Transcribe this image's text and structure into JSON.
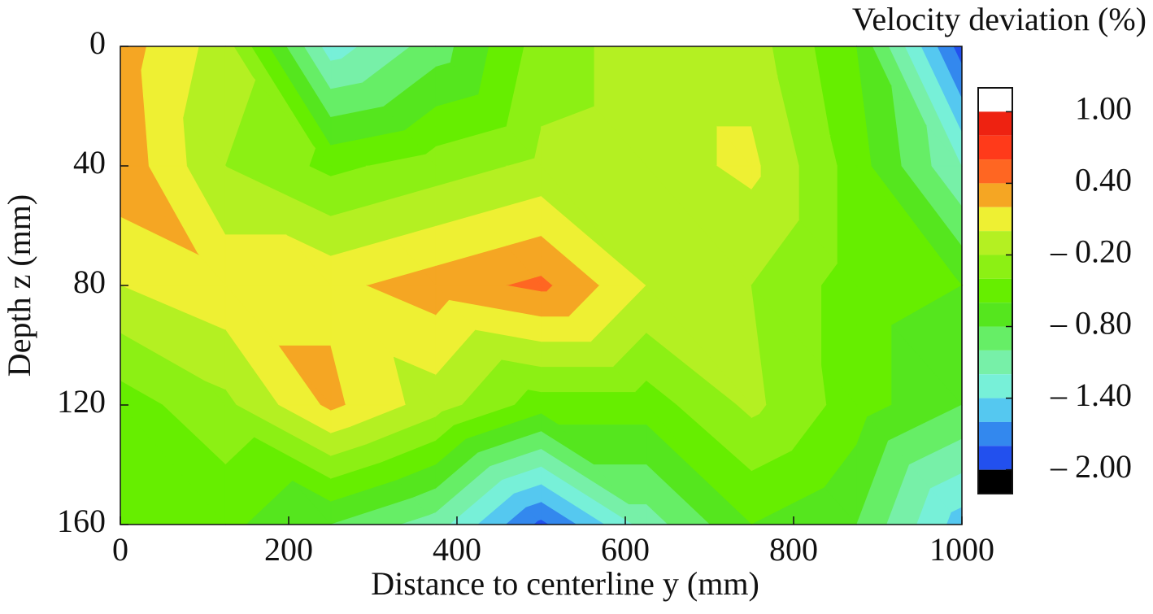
{
  "chart_data": {
    "type": "contour",
    "title": "Velocity deviation (%)",
    "x_label": "Distance to centerline y (mm)",
    "y_label": "Depth z (mm)",
    "x": [
      0,
      125,
      250,
      375,
      500,
      625,
      750,
      875,
      1000
    ],
    "y": [
      0,
      40,
      80,
      120,
      160
    ],
    "z": [
      [
        0.3,
        -0.1,
        -1.3,
        -0.9,
        -0.3,
        -0.1,
        -0.1,
        -0.6,
        -1.9
      ],
      [
        0.35,
        -0.2,
        -0.45,
        -0.3,
        -0.15,
        -0.1,
        0.05,
        -0.5,
        -1.2
      ],
      [
        0.0,
        0.15,
        0.15,
        0.3,
        0.45,
        0.0,
        -0.2,
        -0.5,
        -0.6
      ],
      [
        -0.5,
        -0.25,
        0.25,
        -0.1,
        -0.5,
        -0.5,
        -0.15,
        -0.5,
        -0.8
      ],
      [
        -0.6,
        -0.55,
        -0.8,
        -1.1,
        -1.85,
        -1.1,
        -0.6,
        -0.8,
        -1.5
      ]
    ],
    "xlim": [
      0,
      1000
    ],
    "ylim": [
      160,
      0
    ],
    "xticks": [
      0,
      200,
      400,
      600,
      800,
      1000
    ],
    "yticks": [
      0,
      40,
      80,
      120,
      160
    ],
    "levels": [
      1.2,
      1.0,
      0.8,
      0.6,
      0.4,
      0.2,
      0.0,
      -0.2,
      -0.4,
      -0.6,
      -0.8,
      -1.0,
      -1.2,
      -1.4,
      -1.6,
      -1.8,
      -2.0,
      -2.2
    ],
    "colors": [
      "#ffffff",
      "#ee2211",
      "#ff3a1a",
      "#ff6622",
      "#f5a623",
      "#eef033",
      "#b4f022",
      "#8cf014",
      "#66ee00",
      "#55e61e",
      "#66ee66",
      "#77f0a8",
      "#77f0d8",
      "#55c8f0",
      "#3388ee",
      "#2250ee",
      "#000000"
    ],
    "colorbar_ticks": [
      {
        "value": 1.0,
        "label": "1.00"
      },
      {
        "value": 0.4,
        "label": "0.40"
      },
      {
        "value": -0.2,
        "label": "– 0.20"
      },
      {
        "value": -0.8,
        "label": "– 0.80"
      },
      {
        "value": -1.4,
        "label": "– 1.40"
      },
      {
        "value": -2.0,
        "label": "– 2.00"
      }
    ]
  }
}
